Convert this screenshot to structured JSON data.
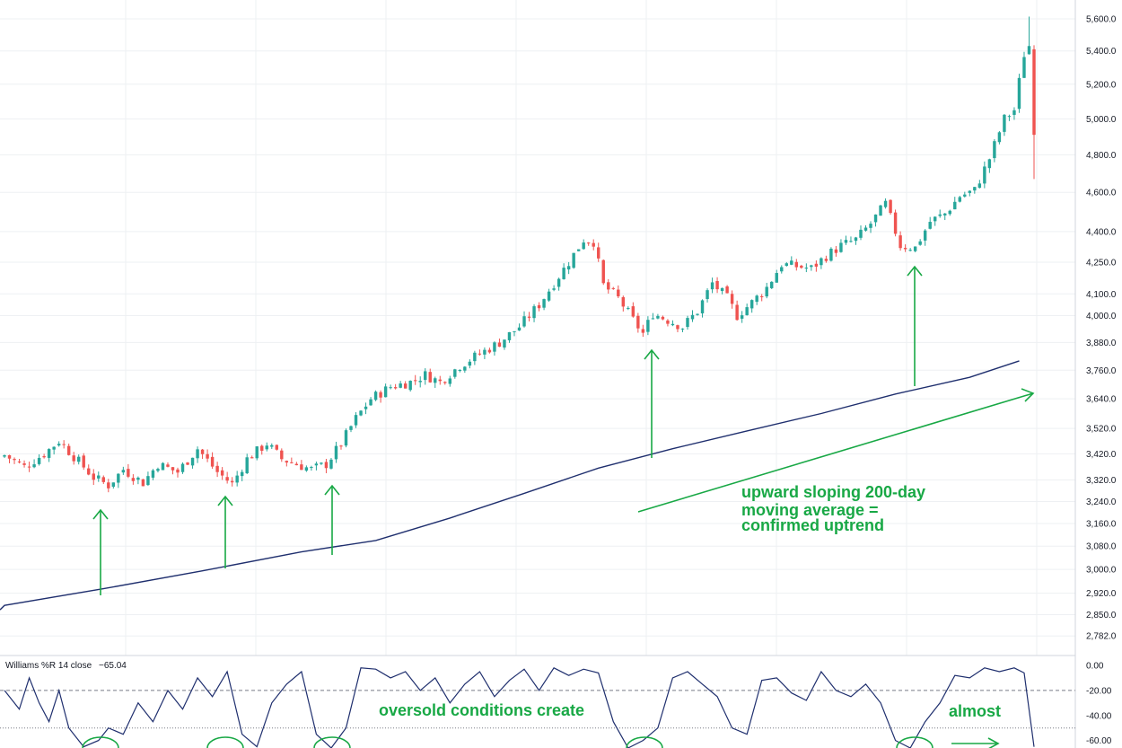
{
  "chart_data": [
    {
      "type": "candlestick",
      "panel": "price",
      "title": "",
      "y_scale": "log",
      "ylim": [
        2760,
        5640
      ],
      "x_axis": {
        "unit": "trading-day index",
        "range": [
          0,
          210
        ]
      },
      "y_ticks": [
        "5,600.0",
        "5,400.0",
        "5,200.0",
        "5,000.0",
        "4,800.0",
        "4,600.0",
        "4,400.0",
        "4,250.0",
        "4,100.0",
        "4,000.0",
        "3,880.0",
        "3,760.0",
        "3,640.0",
        "3,520.0",
        "3,420.0",
        "3,320.0",
        "3,240.0",
        "3,160.0",
        "3,080.0",
        "3,000.0",
        "2,920.0",
        "2,850.0",
        "2,782.0"
      ],
      "y_tick_values": [
        5600,
        5400,
        5200,
        5000,
        4800,
        4600,
        4400,
        4250,
        4100,
        4000,
        3880,
        3760,
        3640,
        3520,
        3420,
        3320,
        3240,
        3160,
        3080,
        3000,
        2920,
        2850,
        2782
      ],
      "grid": true,
      "colors": {
        "up": "#26a69a",
        "down": "#ef5350",
        "ma": "#1f2f6e",
        "annotation": "#18a845",
        "grid": "#eef0f3"
      },
      "close_anchors": [
        [
          0,
          3415
        ],
        [
          4,
          3370
        ],
        [
          8,
          3420
        ],
        [
          11,
          3470
        ],
        [
          14,
          3410
        ],
        [
          18,
          3330
        ],
        [
          21,
          3300
        ],
        [
          24,
          3360
        ],
        [
          28,
          3310
        ],
        [
          31,
          3380
        ],
        [
          35,
          3350
        ],
        [
          39,
          3440
        ],
        [
          43,
          3350
        ],
        [
          46,
          3305
        ],
        [
          49,
          3400
        ],
        [
          53,
          3460
        ],
        [
          56,
          3400
        ],
        [
          59,
          3380
        ],
        [
          62,
          3360
        ],
        [
          65,
          3380
        ],
        [
          68,
          3460
        ],
        [
          71,
          3560
        ],
        [
          74,
          3640
        ],
        [
          78,
          3690
        ],
        [
          82,
          3710
        ],
        [
          85,
          3740
        ],
        [
          88,
          3710
        ],
        [
          92,
          3780
        ],
        [
          96,
          3830
        ],
        [
          100,
          3880
        ],
        [
          104,
          3950
        ],
        [
          108,
          4050
        ],
        [
          111,
          4150
        ],
        [
          114,
          4250
        ],
        [
          117,
          4360
        ],
        [
          119,
          4350
        ],
        [
          121,
          4140
        ],
        [
          124,
          4080
        ],
        [
          127,
          3980
        ],
        [
          129,
          3920
        ],
        [
          131,
          4010
        ],
        [
          134,
          3980
        ],
        [
          137,
          3950
        ],
        [
          140,
          4020
        ],
        [
          143,
          4150
        ],
        [
          146,
          4080
        ],
        [
          148,
          4000
        ],
        [
          151,
          4060
        ],
        [
          154,
          4130
        ],
        [
          157,
          4240
        ],
        [
          160,
          4230
        ],
        [
          163,
          4220
        ],
        [
          166,
          4280
        ],
        [
          169,
          4330
        ],
        [
          172,
          4360
        ],
        [
          175,
          4440
        ],
        [
          178,
          4540
        ],
        [
          181,
          4330
        ],
        [
          184,
          4320
        ],
        [
          187,
          4450
        ],
        [
          190,
          4490
        ],
        [
          193,
          4580
        ],
        [
          196,
          4610
        ],
        [
          199,
          4780
        ],
        [
          202,
          5000
        ],
        [
          204,
          5050
        ],
        [
          206,
          5380
        ],
        [
          207,
          5420
        ],
        [
          208,
          4910
        ]
      ],
      "series": [
        {
          "name": "200-day moving average",
          "type": "line",
          "x": [
            0,
            20,
            40,
            60,
            75,
            90,
            105,
            120,
            135,
            150,
            165,
            180,
            195,
            205
          ],
          "y": [
            2880,
            2935,
            2995,
            3060,
            3100,
            3180,
            3270,
            3365,
            3440,
            3510,
            3580,
            3660,
            3730,
            3800
          ]
        }
      ],
      "annotations": [
        "upward sloping 200-day",
        "moving average =",
        "confirmed uptrend"
      ]
    },
    {
      "type": "line",
      "panel": "oscillator",
      "title": "Williams %R 14 close",
      "current_value": "−65.04",
      "ylim": [
        -66,
        0
      ],
      "y_ticks": [
        "0.00",
        "-20.00",
        "-40.00",
        "-60.00"
      ],
      "y_tick_values": [
        0,
        -20,
        -40,
        -60
      ],
      "reference_lines": [
        -20,
        -50
      ],
      "series": [
        {
          "name": "Williams %R 14 close",
          "x": [
            0,
            3,
            5,
            7,
            9,
            11,
            13,
            16,
            19,
            21,
            24,
            27,
            30,
            33,
            36,
            39,
            42,
            45,
            48,
            51,
            54,
            57,
            60,
            63,
            66,
            69,
            72,
            75,
            78,
            81,
            84,
            87,
            90,
            93,
            96,
            99,
            102,
            105,
            108,
            111,
            114,
            117,
            120,
            123,
            126,
            129,
            132,
            135,
            138,
            141,
            144,
            147,
            150,
            153,
            156,
            159,
            162,
            165,
            168,
            171,
            174,
            177,
            180,
            183,
            186,
            189,
            192,
            195,
            198,
            201,
            204,
            206,
            208
          ],
          "y": [
            -20,
            -35,
            -10,
            -30,
            -45,
            -20,
            -50,
            -65,
            -60,
            -50,
            -55,
            -30,
            -45,
            -20,
            -35,
            -10,
            -25,
            -5,
            -55,
            -65,
            -30,
            -15,
            -5,
            -55,
            -66,
            -50,
            -2,
            -3,
            -10,
            -5,
            -20,
            -10,
            -30,
            -15,
            -5,
            -25,
            -12,
            -3,
            -20,
            -2,
            -8,
            -3,
            -6,
            -45,
            -66,
            -60,
            -50,
            -10,
            -5,
            -15,
            -25,
            -50,
            -55,
            -12,
            -10,
            -22,
            -28,
            -5,
            -20,
            -25,
            -15,
            -30,
            -60,
            -66,
            -45,
            -30,
            -8,
            -10,
            -2,
            -5,
            -2,
            -6,
            -65.04
          ]
        }
      ],
      "annotations": [
        "oversold conditions create",
        "almost"
      ]
    }
  ]
}
